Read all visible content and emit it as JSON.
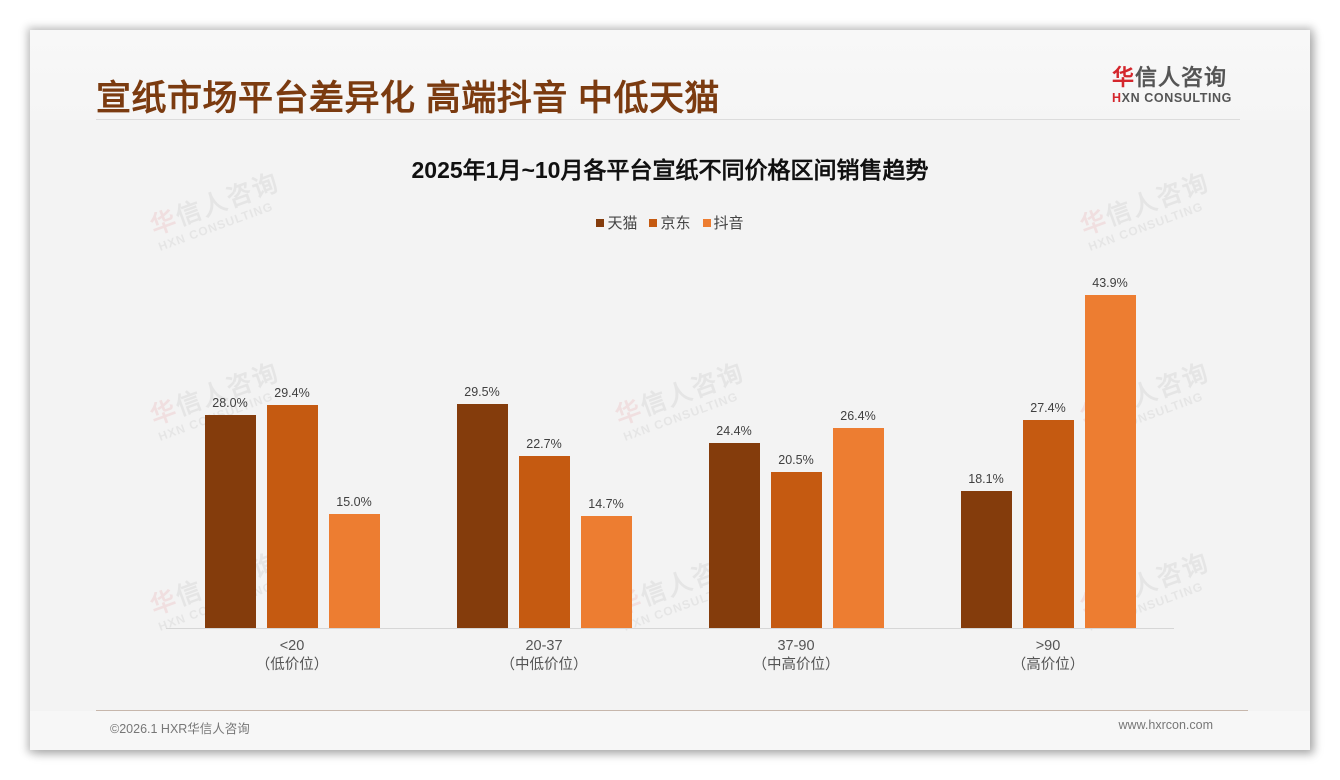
{
  "header": {
    "title": "宣纸市场平台差异化 高端抖音 中低天猫",
    "logo": {
      "cn_first": "华",
      "cn_rest": "信人咨询",
      "en_first": "H",
      "en_rest": "XN CONSULTING"
    }
  },
  "watermark": {
    "cn_first": "华",
    "cn_rest": "信人咨询",
    "en": "HXN CONSULTING"
  },
  "footer": {
    "left": "©2026.1 HXR华信人咨询",
    "right": "www.hxrcon.com"
  },
  "colors": {
    "title": "#7b3b10",
    "tmall": "#843c0c",
    "jd": "#c55a11",
    "douyin": "#ed7d31"
  },
  "chart_data": {
    "type": "bar",
    "title": "2025年1月~10月各平台宣纸不同价格区间销售趋势",
    "xlabel": "",
    "ylabel": "",
    "ylim": [
      0,
      50
    ],
    "grid": false,
    "legend_position": "top",
    "categories": [
      "<20",
      "20-37",
      "37-90",
      ">90"
    ],
    "category_sublabels": [
      "（低价位）",
      "（中低价位）",
      "（中高价位）",
      "（高价位）"
    ],
    "series": [
      {
        "name": "天猫",
        "color": "#843c0c",
        "values": [
          28.0,
          29.5,
          24.4,
          18.1
        ],
        "labels": [
          "28.0%",
          "29.5%",
          "24.4%",
          "18.1%"
        ]
      },
      {
        "name": "京东",
        "color": "#c55a11",
        "values": [
          29.4,
          22.7,
          20.5,
          27.4
        ],
        "labels": [
          "29.4%",
          "22.7%",
          "20.5%",
          "27.4%"
        ]
      },
      {
        "name": "抖音",
        "color": "#ed7d31",
        "values": [
          15.0,
          14.7,
          26.4,
          43.9
        ],
        "labels": [
          "15.0%",
          "14.7%",
          "26.4%",
          "43.9%"
        ]
      }
    ]
  }
}
